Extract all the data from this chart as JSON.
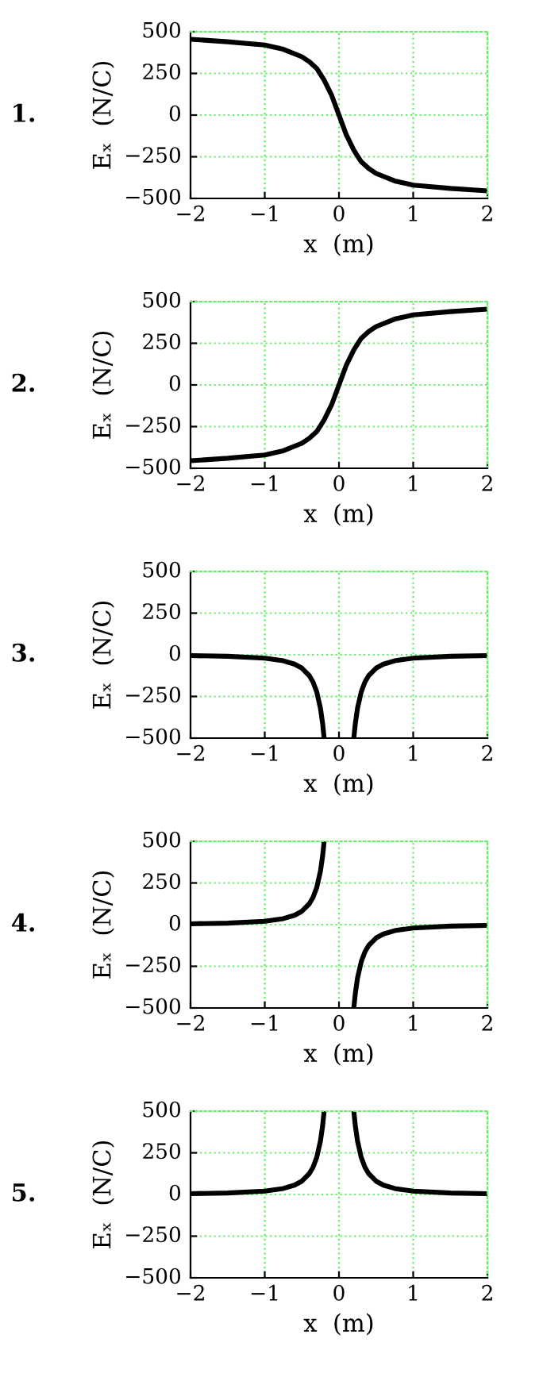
{
  "chart_data": [
    {
      "type": "line",
      "annotations": [
        "1."
      ],
      "xlabel": "x  (m)",
      "ylabel": "Eₓ  (N/C)",
      "x": [
        -2,
        -1.5,
        -1,
        -0.75,
        -0.5,
        -0.4,
        -0.3,
        -0.2,
        -0.1,
        -0.05,
        0,
        0.05,
        0.1,
        0.2,
        0.3,
        0.4,
        0.5,
        0.75,
        1,
        1.5,
        2
      ],
      "series": [
        {
          "color": "#000000",
          "values": [
            455,
            440,
            420,
            395,
            350,
            320,
            280,
            210,
            120,
            60,
            0,
            -60,
            -120,
            -210,
            -280,
            -320,
            -350,
            -395,
            -420,
            -440,
            -455
          ]
        }
      ],
      "xlim": [
        -2,
        2
      ],
      "ylim": [
        -500,
        500
      ],
      "xticks": [
        -2,
        -1,
        0,
        1,
        2
      ],
      "yticks": [
        -500,
        -250,
        0,
        250,
        500
      ],
      "grid": true,
      "marker": "none",
      "line_style": "solid"
    },
    {
      "type": "line",
      "annotations": [
        "2."
      ],
      "xlabel": "x  (m)",
      "ylabel": "Eₓ  (N/C)",
      "x": [
        -2,
        -1.5,
        -1,
        -0.75,
        -0.5,
        -0.4,
        -0.3,
        -0.2,
        -0.1,
        -0.05,
        0,
        0.05,
        0.1,
        0.2,
        0.3,
        0.4,
        0.5,
        0.75,
        1,
        1.5,
        2
      ],
      "series": [
        {
          "color": "#000000",
          "values": [
            -455,
            -440,
            -420,
            -395,
            -350,
            -320,
            -280,
            -210,
            -120,
            -60,
            0,
            60,
            120,
            210,
            280,
            320,
            350,
            395,
            420,
            440,
            455
          ]
        }
      ],
      "xlim": [
        -2,
        2
      ],
      "ylim": [
        -500,
        500
      ],
      "xticks": [
        -2,
        -1,
        0,
        1,
        2
      ],
      "yticks": [
        -500,
        -250,
        0,
        250,
        500
      ],
      "grid": true,
      "marker": "none",
      "line_style": "solid"
    },
    {
      "type": "line",
      "annotations": [
        "3."
      ],
      "xlabel": "x  (m)",
      "ylabel": "Eₓ  (N/C)",
      "x": [
        -2,
        -1.5,
        -1,
        -0.75,
        -0.6,
        -0.5,
        -0.4,
        -0.35,
        -0.3,
        -0.25,
        -0.22,
        -0.2,
        0,
        0.2,
        0.22,
        0.25,
        0.3,
        0.35,
        0.4,
        0.5,
        0.6,
        0.75,
        1,
        1.5,
        2
      ],
      "series": [
        {
          "color": "#000000",
          "values": [
            -5,
            -9,
            -20,
            -36,
            -56,
            -80,
            -125,
            -163,
            -222,
            -320,
            -413,
            -500,
            null,
            -500,
            -413,
            -320,
            -222,
            -163,
            -125,
            -80,
            -56,
            -36,
            -20,
            -9,
            -5
          ]
        }
      ],
      "xlim": [
        -2,
        2
      ],
      "ylim": [
        -500,
        500
      ],
      "xticks": [
        -2,
        -1,
        0,
        1,
        2
      ],
      "yticks": [
        -500,
        -250,
        0,
        250,
        500
      ],
      "grid": true,
      "marker": "none",
      "line_style": "solid"
    },
    {
      "type": "line",
      "annotations": [
        "4."
      ],
      "xlabel": "x  (m)",
      "ylabel": "Eₓ  (N/C)",
      "x": [
        -2,
        -1.5,
        -1,
        -0.75,
        -0.6,
        -0.5,
        -0.4,
        -0.35,
        -0.3,
        -0.25,
        -0.22,
        -0.2,
        0,
        0.2,
        0.22,
        0.25,
        0.3,
        0.35,
        0.4,
        0.5,
        0.6,
        0.75,
        1,
        1.5,
        2
      ],
      "series": [
        {
          "color": "#000000",
          "values": [
            5,
            9,
            20,
            36,
            56,
            80,
            125,
            163,
            222,
            320,
            413,
            500,
            null,
            -500,
            -413,
            -320,
            -222,
            -163,
            -125,
            -80,
            -56,
            -36,
            -20,
            -9,
            -5
          ]
        }
      ],
      "xlim": [
        -2,
        2
      ],
      "ylim": [
        -500,
        500
      ],
      "xticks": [
        -2,
        -1,
        0,
        1,
        2
      ],
      "yticks": [
        -500,
        -250,
        0,
        250,
        500
      ],
      "grid": true,
      "marker": "none",
      "line_style": "solid"
    },
    {
      "type": "line",
      "annotations": [
        "5."
      ],
      "xlabel": "x  (m)",
      "ylabel": "Eₓ  (N/C)",
      "x": [
        -2,
        -1.5,
        -1,
        -0.75,
        -0.6,
        -0.5,
        -0.4,
        -0.35,
        -0.3,
        -0.25,
        -0.22,
        -0.2,
        0,
        0.2,
        0.22,
        0.25,
        0.3,
        0.35,
        0.4,
        0.5,
        0.6,
        0.75,
        1,
        1.5,
        2
      ],
      "series": [
        {
          "color": "#000000",
          "values": [
            5,
            9,
            20,
            36,
            56,
            80,
            125,
            163,
            222,
            320,
            413,
            500,
            null,
            500,
            413,
            320,
            222,
            163,
            125,
            80,
            56,
            36,
            20,
            9,
            5
          ]
        }
      ],
      "xlim": [
        -2,
        2
      ],
      "ylim": [
        -500,
        500
      ],
      "xticks": [
        -2,
        -1,
        0,
        1,
        2
      ],
      "yticks": [
        -500,
        -250,
        0,
        250,
        500
      ],
      "grid": true,
      "marker": "none",
      "line_style": "solid"
    }
  ]
}
